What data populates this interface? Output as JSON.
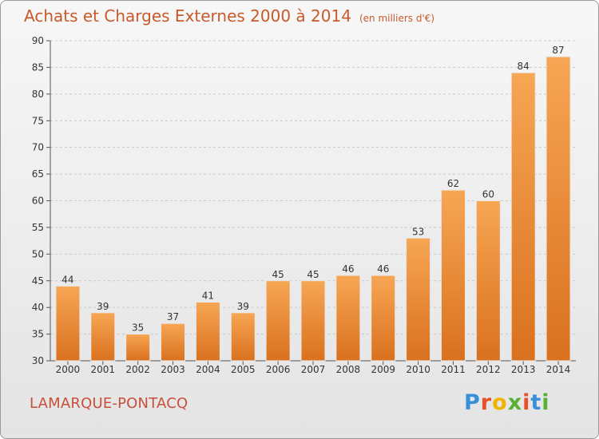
{
  "header": {
    "title": "Achats et Charges Externes 2000 à 2014",
    "unit": "(en milliers d'€)"
  },
  "footer": {
    "commune": "LAMARQUE-PONTACQ",
    "logo_text": "Proxiti"
  },
  "colors": {
    "bar_light": "#f7a654",
    "bar_dark": "#d9711f",
    "title": "#c85a2a",
    "logo": [
      "#3a8fd9",
      "#e8502a",
      "#f0b400",
      "#5ab030",
      "#e8502a",
      "#3a8fd9",
      "#5ab030"
    ]
  },
  "chart_data": {
    "type": "bar",
    "title": "Achats et Charges Externes 2000 à 2014",
    "categories": [
      "2000",
      "2001",
      "2002",
      "2003",
      "2004",
      "2005",
      "2006",
      "2007",
      "2008",
      "2009",
      "2010",
      "2011",
      "2012",
      "2013",
      "2014"
    ],
    "values": [
      44,
      39,
      35,
      37,
      41,
      39,
      45,
      45,
      46,
      46,
      53,
      62,
      60,
      84,
      87
    ],
    "ylim": [
      30,
      90
    ],
    "yticks": [
      30,
      35,
      40,
      45,
      50,
      55,
      60,
      65,
      70,
      75,
      80,
      85,
      90
    ],
    "grid": true,
    "xlabel": "",
    "ylabel": ""
  }
}
